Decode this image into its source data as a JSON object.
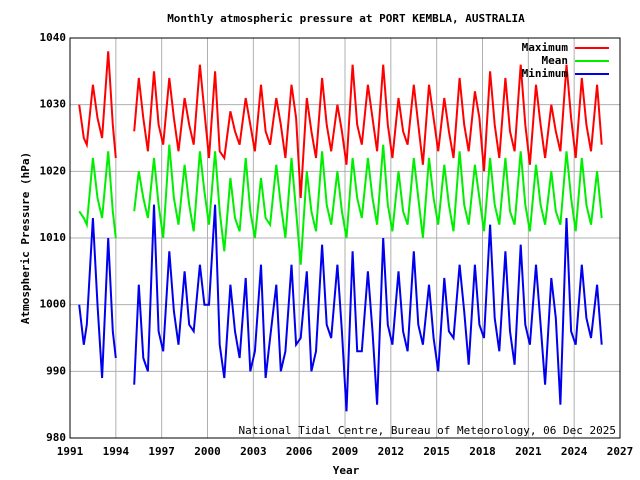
{
  "chart_data": {
    "type": "line",
    "title": "Monthly atmospheric pressure at PORT KEMBLA, AUSTRALIA",
    "xlabel": "Year",
    "ylabel": "Atmospheric Pressure (hPa)",
    "credit": "National Tidal Centre, Bureau of Meteorology, 06 Dec 2025",
    "x": [
      1991.6,
      1991.9,
      1992.1,
      1992.5,
      1992.8,
      1993.1,
      1993.5,
      1993.8,
      1994.0,
      1994.6,
      1995.2,
      1995.5,
      1995.8,
      1996.1,
      1996.5,
      1996.8,
      1997.1,
      1997.5,
      1997.8,
      1998.1,
      1998.5,
      1998.8,
      1999.1,
      1999.5,
      1999.8,
      2000.1,
      2000.5,
      2000.8,
      2001.1,
      2001.5,
      2001.8,
      2002.1,
      2002.5,
      2002.8,
      2003.1,
      2003.5,
      2003.8,
      2004.1,
      2004.5,
      2004.8,
      2005.1,
      2005.5,
      2005.8,
      2006.1,
      2006.5,
      2006.8,
      2007.1,
      2007.5,
      2007.8,
      2008.1,
      2008.5,
      2008.8,
      2009.1,
      2009.5,
      2009.8,
      2010.1,
      2010.5,
      2010.8,
      2011.1,
      2011.5,
      2011.8,
      2012.1,
      2012.5,
      2012.8,
      2013.1,
      2013.5,
      2013.8,
      2014.1,
      2014.5,
      2014.8,
      2015.1,
      2015.5,
      2015.8,
      2016.1,
      2016.5,
      2016.8,
      2017.1,
      2017.5,
      2017.8,
      2018.1,
      2018.5,
      2018.8,
      2019.1,
      2019.5,
      2019.8,
      2020.1,
      2020.5,
      2020.8,
      2021.1,
      2021.5,
      2021.8,
      2022.1,
      2022.5,
      2022.8,
      2023.1,
      2023.5,
      2023.8,
      2024.1,
      2024.5,
      2024.8,
      2025.1,
      2025.5,
      2025.8
    ],
    "series": [
      {
        "name": "Maximum",
        "color": "#ff0000",
        "values": [
          1030,
          1025,
          1024,
          1033,
          1028,
          1025,
          1038,
          1027,
          1022,
          null,
          1026,
          1034,
          1028,
          1023,
          1035,
          1027,
          1024,
          1034,
          1028,
          1023,
          1031,
          1027,
          1024,
          1036,
          1029,
          1022,
          1035,
          1023,
          1022,
          1029,
          1026,
          1024,
          1031,
          1027,
          1023,
          1033,
          1026,
          1024,
          1031,
          1027,
          1022,
          1033,
          1028,
          1016,
          1031,
          1026,
          1022,
          1034,
          1027,
          1023,
          1030,
          1026,
          1021,
          1036,
          1027,
          1024,
          1033,
          1028,
          1023,
          1036,
          1027,
          1022,
          1031,
          1026,
          1024,
          1033,
          1027,
          1021,
          1033,
          1028,
          1023,
          1031,
          1026,
          1022,
          1034,
          1027,
          1023,
          1032,
          1028,
          1020,
          1035,
          1027,
          1022,
          1034,
          1026,
          1023,
          1036,
          1027,
          1021,
          1033,
          1027,
          1022,
          1030,
          1026,
          1023,
          1036,
          1028,
          1022,
          1034,
          1027,
          1023,
          1033,
          1024
        ]
      },
      {
        "name": "Mean",
        "color": "#00ee00",
        "values": [
          1014,
          1013,
          1012,
          1022,
          1016,
          1013,
          1023,
          1014,
          1010,
          null,
          1014,
          1020,
          1016,
          1013,
          1022,
          1015,
          1010,
          1024,
          1016,
          1012,
          1021,
          1015,
          1011,
          1023,
          1017,
          1012,
          1023,
          1014,
          1008,
          1019,
          1013,
          1011,
          1022,
          1014,
          1010,
          1019,
          1013,
          1012,
          1021,
          1015,
          1010,
          1022,
          1014,
          1006,
          1020,
          1014,
          1011,
          1023,
          1015,
          1012,
          1020,
          1014,
          1010,
          1022,
          1016,
          1013,
          1022,
          1016,
          1012,
          1024,
          1015,
          1011,
          1020,
          1014,
          1012,
          1022,
          1016,
          1010,
          1022,
          1016,
          1012,
          1021,
          1015,
          1011,
          1023,
          1015,
          1012,
          1021,
          1016,
          1011,
          1022,
          1015,
          1012,
          1022,
          1014,
          1012,
          1023,
          1015,
          1011,
          1021,
          1015,
          1012,
          1020,
          1014,
          1012,
          1023,
          1016,
          1011,
          1022,
          1015,
          1012,
          1020,
          1013
        ]
      },
      {
        "name": "Minimum",
        "color": "#0000ee",
        "values": [
          1000,
          994,
          997,
          1013,
          1000,
          989,
          1010,
          996,
          992,
          null,
          988,
          1003,
          992,
          990,
          1015,
          996,
          993,
          1008,
          999,
          994,
          1005,
          997,
          996,
          1006,
          1000,
          1000,
          1015,
          994,
          989,
          1003,
          996,
          992,
          1004,
          990,
          993,
          1006,
          989,
          995,
          1003,
          990,
          993,
          1006,
          994,
          995,
          1005,
          990,
          993,
          1009,
          997,
          995,
          1006,
          996,
          984,
          1008,
          993,
          993,
          1005,
          996,
          985,
          1010,
          997,
          994,
          1005,
          996,
          993,
          1008,
          997,
          994,
          1003,
          995,
          990,
          1004,
          996,
          995,
          1006,
          999,
          991,
          1006,
          997,
          995,
          1012,
          998,
          993,
          1008,
          996,
          991,
          1009,
          997,
          994,
          1006,
          997,
          988,
          1004,
          998,
          985,
          1013,
          996,
          994,
          1006,
          998,
          995,
          1003,
          994
        ]
      }
    ],
    "xlim": [
      1991,
      2027
    ],
    "ylim": [
      980,
      1040
    ],
    "xticks": [
      1991,
      1994,
      1997,
      2000,
      2003,
      2006,
      2009,
      2012,
      2015,
      2018,
      2021,
      2024,
      2027
    ],
    "yticks": [
      980,
      990,
      1000,
      1010,
      1020,
      1030,
      1040
    ],
    "grid": true,
    "legend": "upper right"
  }
}
